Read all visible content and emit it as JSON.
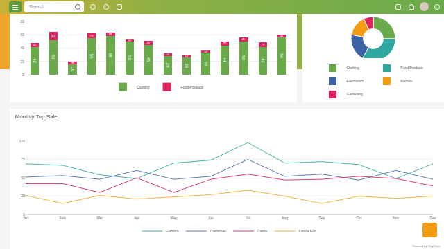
{
  "toolbar": {
    "search_placeholder": "Search"
  },
  "chart_data": [
    {
      "type": "bar",
      "stacked": true,
      "data_labels": true,
      "tick_labels": "y",
      "categories": [
        null,
        null,
        null,
        null,
        null,
        null,
        null,
        null,
        null,
        null,
        null,
        null,
        null,
        null
      ],
      "series": [
        {
          "name": "Clothing",
          "color": "#6aaa4b",
          "values": [
            42,
            52,
            16,
            55,
            58,
            50,
            45,
            28,
            26,
            33,
            44,
            50,
            42,
            56
          ]
        },
        {
          "name": "Food Products",
          "color": "#e0245e",
          "values": [
            6,
            12,
            4,
            7,
            5,
            3,
            6,
            4,
            3,
            3,
            6,
            6,
            7,
            4
          ]
        }
      ],
      "ylim": [
        0,
        80
      ],
      "yticks": [
        0,
        20,
        40,
        60,
        80
      ],
      "grid": true,
      "legend": "bottom"
    },
    {
      "type": "donut",
      "categories": [
        "Clothing",
        "Food Products",
        "Electronics",
        "Kitchen",
        "Gardening"
      ],
      "values": [
        25,
        33,
        20,
        15,
        7
      ],
      "colors": [
        "#6aaa4b",
        "#2fa9a0",
        "#3b62a5",
        "#f39c12",
        "#e0245e"
      ],
      "legend": "bottom"
    },
    {
      "type": "line",
      "title": "Monthly Top Sale",
      "categories": [
        "Jan",
        "Feb",
        "Mar",
        "Apr",
        "May",
        "Jun",
        "Jul",
        "Aug",
        "Sep",
        "Oct",
        "Nov",
        "Dec"
      ],
      "series": [
        {
          "name": "Gamora",
          "color": "#45b3a8",
          "values": [
            69,
            67,
            54,
            49,
            70,
            74,
            98,
            70,
            72,
            68,
            49,
            69
          ]
        },
        {
          "name": "Craftsman",
          "color": "#5a79b0",
          "values": [
            51,
            53,
            48,
            60,
            48,
            52,
            75,
            52,
            55,
            47,
            60,
            48
          ]
        },
        {
          "name": "Clarks",
          "color": "#d63d62",
          "values": [
            42,
            42,
            30,
            50,
            30,
            48,
            55,
            47,
            48,
            52,
            49,
            39
          ]
        },
        {
          "name": "Land's End",
          "color": "#f5b041",
          "values": [
            26,
            15,
            26,
            21,
            24,
            27,
            33,
            25,
            15,
            25,
            22,
            25
          ]
        }
      ],
      "ylim": [
        0,
        100
      ],
      "yticks": [
        0,
        25,
        50,
        75,
        100
      ],
      "grid": true,
      "legend": "bottom"
    }
  ],
  "footer": "Powered by ZingChart"
}
